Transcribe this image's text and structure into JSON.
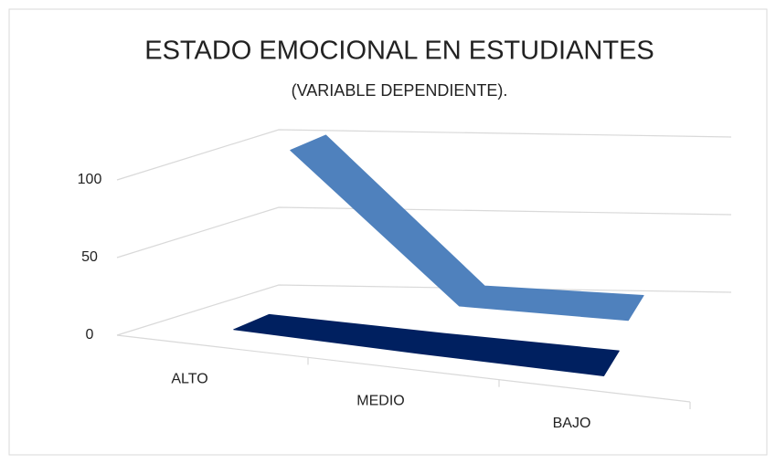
{
  "chart_data": {
    "type": "line3d",
    "title": "ESTADO EMOCIONAL EN ESTUDIANTES",
    "subtitle": "(VARIABLE DEPENDIENTE).",
    "categories": [
      "ALTO",
      "MEDIO",
      "BAJO"
    ],
    "series": [
      {
        "color": "#002060",
        "values": [
          5,
          2,
          0
        ]
      },
      {
        "color": "#4f81bd",
        "values": [
          105,
          12,
          10
        ]
      }
    ],
    "ylim": [
      0,
      100
    ],
    "yticks": [
      0,
      50,
      100
    ],
    "grid": true
  }
}
